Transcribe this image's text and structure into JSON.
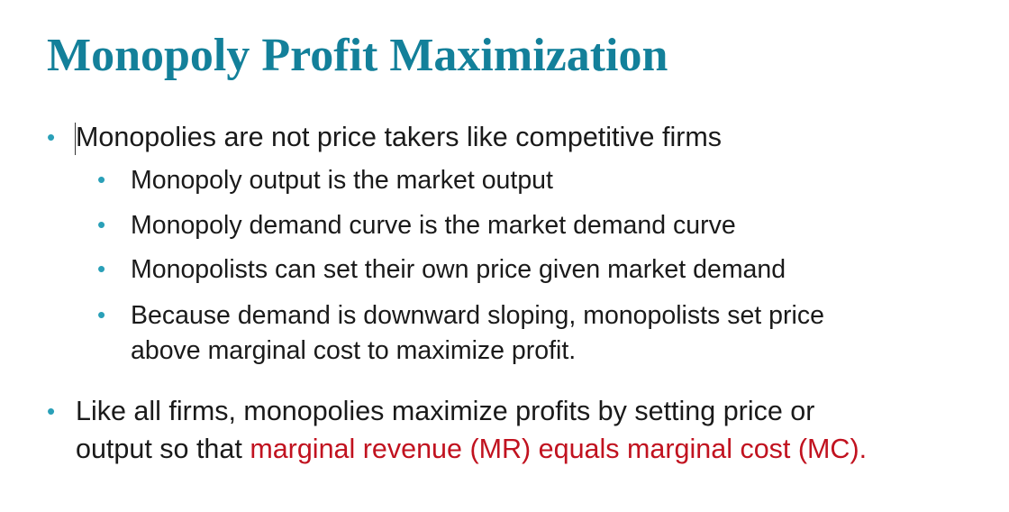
{
  "slide": {
    "title": "Monopoly Profit Maximization",
    "bullets": [
      {
        "level": 1,
        "lines": [
          "Monopolies are not price takers like competitive firms"
        ]
      },
      {
        "level": 2,
        "lines": [
          "Monopoly output is the market output"
        ]
      },
      {
        "level": 2,
        "lines": [
          "Monopoly demand curve is the market demand curve"
        ]
      },
      {
        "level": 2,
        "lines": [
          "Monopolists can set their own price given market demand"
        ]
      },
      {
        "level": 2,
        "lines": [
          "Because demand is downward sloping, monopolists set price",
          "above marginal cost to maximize profit."
        ]
      },
      {
        "level": 1,
        "line1": "Like all firms, monopolies maximize profits by setting price or",
        "line2_plain": "output so that ",
        "line2_highlight": "marginal revenue (MR) equals marginal cost (MC)."
      }
    ],
    "bullet_glyph": "•",
    "colors": {
      "title": "#13809a",
      "bullet": "#2aa0b8",
      "highlight": "#c1121f",
      "text": "#1a1a1a"
    }
  }
}
